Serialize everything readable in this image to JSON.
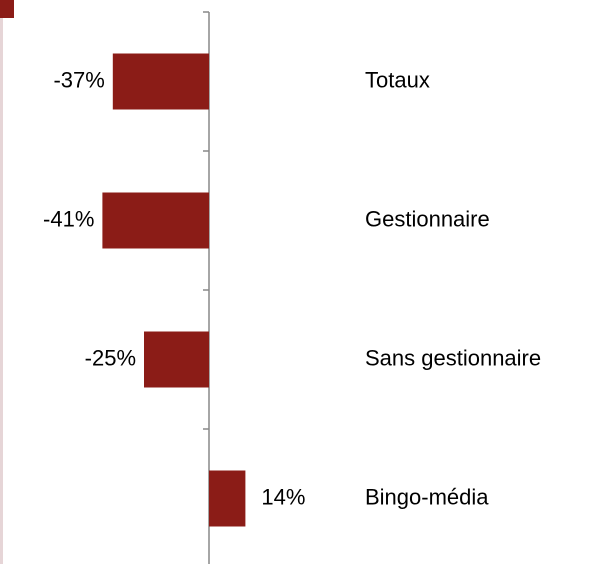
{
  "chart_data": {
    "type": "barh",
    "categories": [
      "Totaux",
      "Gestionnaire",
      "Sans gestionnaire",
      "Bingo-média"
    ],
    "values": [
      -37,
      -41,
      -25,
      14
    ],
    "value_labels": [
      "-37%",
      "-41%",
      "-25%",
      "14%"
    ],
    "color": "#8b1c17"
  }
}
